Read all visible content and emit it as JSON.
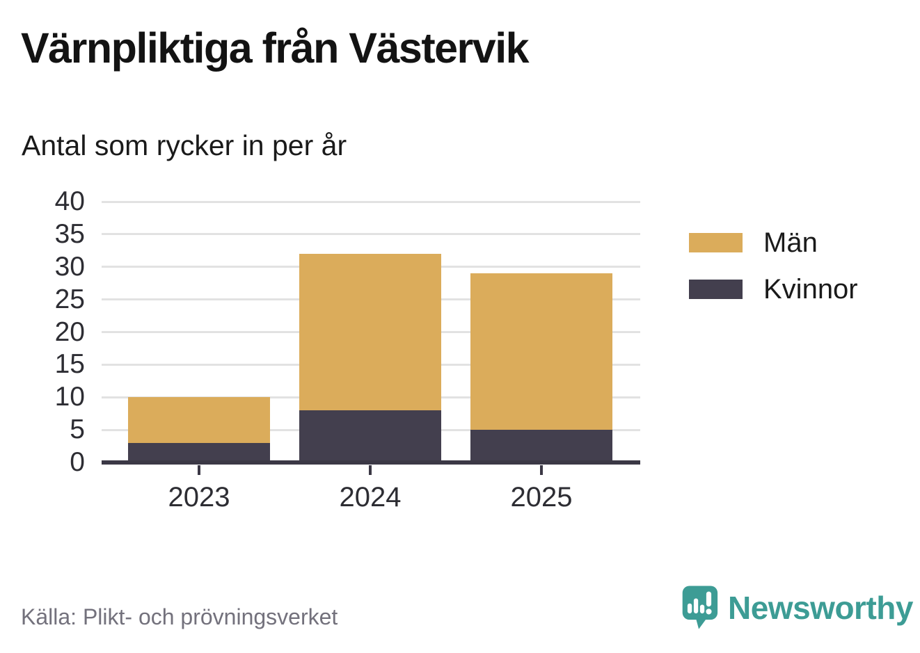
{
  "title": "Värnpliktiga från Västervik",
  "subtitle": "Antal som rycker in per år",
  "source": "Källa: Plikt- och prövningsverket",
  "brand": {
    "name": "Newsworthy",
    "color": "#3d9c95"
  },
  "legend": [
    {
      "label": "Män",
      "color": "#dbac5b"
    },
    {
      "label": "Kvinnor",
      "color": "#433f4e"
    }
  ],
  "colors": {
    "grid": "#e2e2e2",
    "axis": "#3b3845",
    "tick_label": "#2d2d33"
  },
  "chart_data": {
    "type": "bar",
    "stacked": true,
    "title": "Värnpliktiga från Västervik",
    "subtitle": "Antal som rycker in per år",
    "categories": [
      "2023",
      "2024",
      "2025"
    ],
    "series": [
      {
        "name": "Kvinnor",
        "color": "#433f4e",
        "values": [
          3,
          8,
          5
        ]
      },
      {
        "name": "Män",
        "color": "#dbac5b",
        "values": [
          7,
          24,
          24
        ]
      }
    ],
    "totals": [
      10,
      32,
      29
    ],
    "xlabel": "",
    "ylabel": "",
    "ylim": [
      0,
      40
    ],
    "yticks": [
      0,
      5,
      10,
      15,
      20,
      25,
      30,
      35,
      40
    ],
    "grid": true,
    "legend_position": "right",
    "source": "Källa: Plikt- och prövningsverket"
  }
}
